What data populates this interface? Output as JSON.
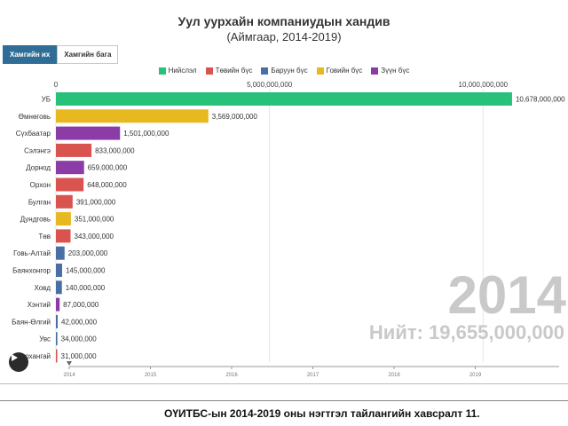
{
  "title": "Уул уурхайн компаниудын хандив",
  "subtitle": "(Аймгаар, 2014-2019)",
  "tabs": [
    {
      "label": "Хамгийн их",
      "active": true
    },
    {
      "label": "Хамгийн бага",
      "active": false
    }
  ],
  "legend": [
    {
      "label": "Нийслэл",
      "color": "#27c17a"
    },
    {
      "label": "Төвийн бүс",
      "color": "#d9534f"
    },
    {
      "label": "Баруун бүс",
      "color": "#4a6fa5"
    },
    {
      "label": "Говийн бүс",
      "color": "#e8b820"
    },
    {
      "label": "Зүүн бүс",
      "color": "#8b3ca6"
    }
  ],
  "year_display": "2014",
  "total_label": "Нийт: 19,655,000,000",
  "caption": "ОҮИТБС-ын 2014-2019 оны нэгтгэл тайлангийн хавсралт 11.",
  "chart_data": {
    "type": "bar",
    "orientation": "horizontal",
    "categories": [
      "УБ",
      "Өмнөговь",
      "Сүхбаатар",
      "Сэлэнгэ",
      "Дорнод",
      "Орхон",
      "Булган",
      "Дундговь",
      "Төв",
      "Говь-Алтай",
      "Баянхонгор",
      "Ховд",
      "Хэнтий",
      "Баян-Өлгий",
      "Увс",
      "Архангай"
    ],
    "values": [
      10678000000,
      3569000000,
      1501000000,
      833000000,
      659000000,
      648000000,
      391000000,
      351000000,
      343000000,
      203000000,
      145000000,
      140000000,
      87000000,
      42000000,
      34000000,
      31000000
    ],
    "value_labels": [
      "10,678,000,000",
      "3,569,000,000",
      "1,501,000,000",
      "833,000,000",
      "659,000,000",
      "648,000,000",
      "391,000,000",
      "351,000,000",
      "343,000,000",
      "203,000,000",
      "145,000,000",
      "140,000,000",
      "87,000,000",
      "42,000,000",
      "34,000,000",
      "31,000,000"
    ],
    "colors": [
      "#27c17a",
      "#e8b820",
      "#8b3ca6",
      "#d9534f",
      "#8b3ca6",
      "#d9534f",
      "#d9534f",
      "#e8b820",
      "#d9534f",
      "#4a6fa5",
      "#4a6fa5",
      "#4a6fa5",
      "#8b3ca6",
      "#4a6fa5",
      "#4a6fa5",
      "#d9534f"
    ],
    "xlim": [
      0,
      10700000000
    ],
    "x_ticks": [
      0,
      5000000000,
      10000000000
    ],
    "x_tick_labels": [
      "0",
      "5,000,000,000",
      "10,000,000,000"
    ],
    "timeline": [
      "2014",
      "2015",
      "2016",
      "2017",
      "2018",
      "2019"
    ],
    "current_year": "2014"
  }
}
